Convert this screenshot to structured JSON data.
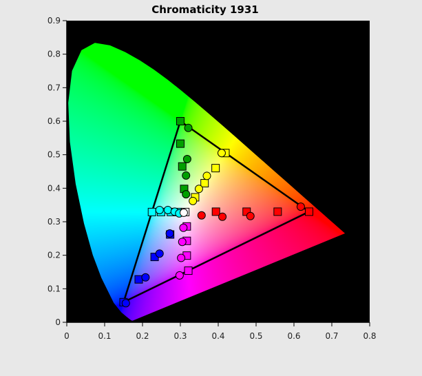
{
  "chart_data": {
    "type": "scatter",
    "title": "Chromaticity 1931",
    "xlabel": "",
    "ylabel": "",
    "xlim": [
      0,
      0.8
    ],
    "ylim": [
      0,
      0.9
    ],
    "x_ticks": [
      0,
      0.1,
      0.2,
      0.3,
      0.4,
      0.5,
      0.6,
      0.7,
      0.8
    ],
    "x_tick_labels": [
      "0",
      "0.1",
      "0.2",
      "0.3",
      "0.4",
      "0.5",
      "0.6",
      "0.7",
      "0.8"
    ],
    "y_ticks": [
      0,
      0.1,
      0.2,
      0.3,
      0.4,
      0.5,
      0.6,
      0.7,
      0.8,
      0.9
    ],
    "y_tick_labels": [
      "0",
      "0.1",
      "0.2",
      "0.3",
      "0.4",
      "0.5",
      "0.6",
      "0.7",
      "0.8",
      "0.9"
    ],
    "grid": false,
    "plot_background": "#000000",
    "gamut_triangle": {
      "stroke": "#000000",
      "vertices": [
        [
          0.64,
          0.33
        ],
        [
          0.3,
          0.6
        ],
        [
          0.15,
          0.06
        ]
      ]
    },
    "spectral_locus": [
      [
        0.1741,
        0.005
      ],
      [
        0.1738,
        0.0049
      ],
      [
        0.1733,
        0.0048
      ],
      [
        0.1726,
        0.0048
      ],
      [
        0.1714,
        0.0051
      ],
      [
        0.1689,
        0.0069
      ],
      [
        0.1644,
        0.0109
      ],
      [
        0.1566,
        0.0177
      ],
      [
        0.144,
        0.0297
      ],
      [
        0.1241,
        0.0578
      ],
      [
        0.0913,
        0.1327
      ],
      [
        0.0687,
        0.2007
      ],
      [
        0.0454,
        0.295
      ],
      [
        0.0235,
        0.4127
      ],
      [
        0.0082,
        0.5384
      ],
      [
        0.0039,
        0.6548
      ],
      [
        0.0139,
        0.7502
      ],
      [
        0.0389,
        0.812
      ],
      [
        0.0743,
        0.8338
      ],
      [
        0.1142,
        0.8262
      ],
      [
        0.1547,
        0.8059
      ],
      [
        0.1929,
        0.7816
      ],
      [
        0.2296,
        0.7543
      ],
      [
        0.2658,
        0.7243
      ],
      [
        0.3016,
        0.6923
      ],
      [
        0.3373,
        0.6589
      ],
      [
        0.3731,
        0.6245
      ],
      [
        0.4087,
        0.5896
      ],
      [
        0.4441,
        0.5547
      ],
      [
        0.4788,
        0.5202
      ],
      [
        0.5125,
        0.4866
      ],
      [
        0.5448,
        0.4544
      ],
      [
        0.5752,
        0.4242
      ],
      [
        0.6029,
        0.3965
      ],
      [
        0.627,
        0.3725
      ],
      [
        0.6482,
        0.3514
      ],
      [
        0.6658,
        0.334
      ],
      [
        0.6801,
        0.3197
      ],
      [
        0.6915,
        0.3083
      ],
      [
        0.7006,
        0.2993
      ],
      [
        0.7079,
        0.292
      ],
      [
        0.714,
        0.2859
      ],
      [
        0.719,
        0.2809
      ],
      [
        0.723,
        0.277
      ],
      [
        0.726,
        0.274
      ],
      [
        0.7283,
        0.2717
      ],
      [
        0.73,
        0.27
      ],
      [
        0.7311,
        0.2689
      ],
      [
        0.732,
        0.268
      ],
      [
        0.7327,
        0.2673
      ],
      [
        0.7334,
        0.2666
      ],
      [
        0.734,
        0.266
      ],
      [
        0.7344,
        0.2656
      ],
      [
        0.7346,
        0.2654
      ],
      [
        0.7347,
        0.2653
      ]
    ],
    "series": [
      {
        "color": "#ff0000",
        "marker": "square",
        "points": [
          [
            0.64,
            0.33
          ],
          [
            0.557,
            0.33
          ],
          [
            0.475,
            0.33
          ],
          [
            0.394,
            0.33
          ]
        ]
      },
      {
        "color": "#ff0000",
        "marker": "circle",
        "points": [
          [
            0.618,
            0.345
          ],
          [
            0.485,
            0.317
          ],
          [
            0.411,
            0.315
          ],
          [
            0.356,
            0.319
          ]
        ]
      },
      {
        "color": "#00a000",
        "marker": "square",
        "points": [
          [
            0.3,
            0.6
          ],
          [
            0.3,
            0.533
          ],
          [
            0.305,
            0.465
          ],
          [
            0.31,
            0.398
          ]
        ]
      },
      {
        "color": "#00a000",
        "marker": "circle",
        "points": [
          [
            0.321,
            0.58
          ],
          [
            0.318,
            0.487
          ],
          [
            0.315,
            0.438
          ],
          [
            0.315,
            0.382
          ]
        ]
      },
      {
        "color": "#0000ff",
        "marker": "square",
        "points": [
          [
            0.15,
            0.06
          ],
          [
            0.19,
            0.128
          ],
          [
            0.232,
            0.195
          ],
          [
            0.273,
            0.262
          ]
        ]
      },
      {
        "color": "#0000ff",
        "marker": "circle",
        "points": [
          [
            0.156,
            0.057
          ],
          [
            0.208,
            0.134
          ],
          [
            0.245,
            0.205
          ],
          [
            0.272,
            0.265
          ]
        ]
      },
      {
        "color": "#ffff00",
        "marker": "square",
        "points": [
          [
            0.419,
            0.505
          ],
          [
            0.393,
            0.46
          ],
          [
            0.364,
            0.415
          ],
          [
            0.339,
            0.373
          ]
        ]
      },
      {
        "color": "#ffff00",
        "marker": "circle",
        "points": [
          [
            0.409,
            0.505
          ],
          [
            0.37,
            0.437
          ],
          [
            0.349,
            0.398
          ],
          [
            0.333,
            0.362
          ]
        ]
      },
      {
        "color": "#00ffff",
        "marker": "square",
        "points": [
          [
            0.225,
            0.329
          ],
          [
            0.249,
            0.329
          ],
          [
            0.275,
            0.329
          ],
          [
            0.292,
            0.329
          ]
        ]
      },
      {
        "color": "#00ffff",
        "marker": "circle",
        "points": [
          [
            0.245,
            0.335
          ],
          [
            0.267,
            0.335
          ],
          [
            0.285,
            0.33
          ],
          [
            0.297,
            0.325
          ]
        ]
      },
      {
        "color": "#ff00ff",
        "marker": "square",
        "points": [
          [
            0.321,
            0.154
          ],
          [
            0.317,
            0.199
          ],
          [
            0.317,
            0.243
          ],
          [
            0.317,
            0.286
          ]
        ]
      },
      {
        "color": "#ff00ff",
        "marker": "circle",
        "points": [
          [
            0.298,
            0.14
          ],
          [
            0.302,
            0.192
          ],
          [
            0.305,
            0.24
          ],
          [
            0.308,
            0.282
          ]
        ]
      },
      {
        "color": "#ffffff",
        "marker": "square",
        "points": [
          [
            0.313,
            0.329
          ]
        ]
      },
      {
        "color": "#ffffff",
        "marker": "circle",
        "points": [
          [
            0.309,
            0.327
          ]
        ]
      }
    ]
  }
}
